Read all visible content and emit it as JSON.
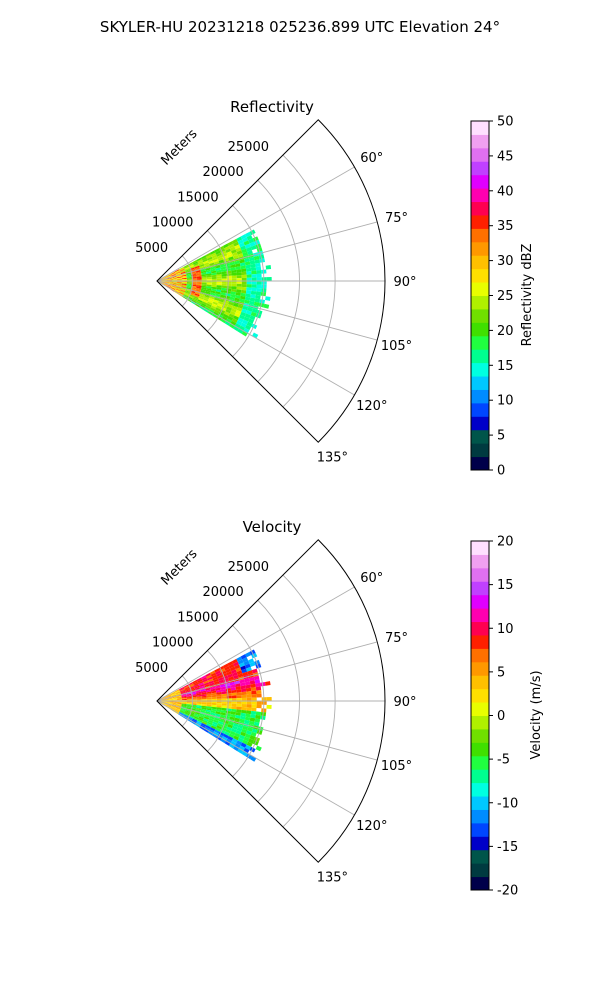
{
  "figure": {
    "title": "SKYLER-HU  20231218  025236.899 UTC Elevation 24°"
  },
  "chart_data": [
    {
      "type": "heatmap",
      "projection": "polar-sector",
      "title": "Reflectivity",
      "range_label": "Meters",
      "range_ticks": [
        5000,
        10000,
        15000,
        20000,
        25000
      ],
      "range_max": 32000,
      "azimuth_min": 45,
      "azimuth_max": 135,
      "azimuth_ticks": [
        60,
        75,
        90,
        105,
        120,
        135
      ],
      "azimuth_tick_labels": [
        "60°",
        "75°",
        "90°",
        "105°",
        "120°",
        "135°"
      ],
      "grid": true,
      "colorbar": {
        "label": "Reflectivity dBZ",
        "vmin": 0,
        "vmax": 50,
        "ticks": [
          0,
          5,
          10,
          15,
          20,
          25,
          30,
          35,
          40,
          45,
          50
        ],
        "colors": [
          "#00004a",
          "#003a40",
          "#00554a",
          "#0000c8",
          "#0046ff",
          "#008cff",
          "#00c8ff",
          "#00ffe0",
          "#00ff90",
          "#20ff40",
          "#40e000",
          "#70e000",
          "#b0f000",
          "#e8ff00",
          "#ffe000",
          "#ffc000",
          "#ff9800",
          "#ff7000",
          "#ff2000",
          "#ff0050",
          "#ff00b0",
          "#e000ff",
          "#c040ff",
          "#e070f0",
          "#f0a0f0",
          "#ffe0ff"
        ]
      },
      "data_extent": {
        "range_max_m": 16000,
        "azimuth_min": 62,
        "azimuth_max": 122
      },
      "dominant_values": "20-25 dBZ across most of the sector; 30-38 dBZ near the radar and along a ring at about 5000 m; 12-18 dBZ along the outer edge"
    },
    {
      "type": "heatmap",
      "projection": "polar-sector",
      "title": "Velocity",
      "range_label": "Meters",
      "range_ticks": [
        5000,
        10000,
        15000,
        20000,
        25000
      ],
      "range_max": 32000,
      "azimuth_min": 45,
      "azimuth_max": 135,
      "azimuth_ticks": [
        60,
        75,
        90,
        105,
        120,
        135
      ],
      "azimuth_tick_labels": [
        "60°",
        "75°",
        "90°",
        "105°",
        "120°",
        "135°"
      ],
      "grid": true,
      "colorbar": {
        "label": "Velocity (m/s)",
        "vmin": -20,
        "vmax": 20,
        "ticks": [
          -20,
          -15,
          -10,
          -5,
          0,
          5,
          10,
          15,
          20
        ],
        "colors": [
          "#00004a",
          "#003a40",
          "#00554a",
          "#0000c8",
          "#0046ff",
          "#008cff",
          "#00c8ff",
          "#00ffe0",
          "#00ff90",
          "#20ff40",
          "#40e000",
          "#70e000",
          "#b0f000",
          "#e8ff00",
          "#ffe000",
          "#ffc000",
          "#ff9800",
          "#ff7000",
          "#ff2000",
          "#ff0050",
          "#ff00b0",
          "#e000ff",
          "#c040ff",
          "#e070f0",
          "#f0a0f0",
          "#ffe0ff"
        ]
      },
      "data_extent": {
        "range_max_m": 16000,
        "azimuth_min": 62,
        "azimuth_max": 122
      },
      "dominant_values": "+10 to +15 m/s between azimuth 65-88°; about +3 m/s near 90°; -3 to -8 m/s between 95-115°; -10 to -15 m/s near 120°"
    }
  ]
}
